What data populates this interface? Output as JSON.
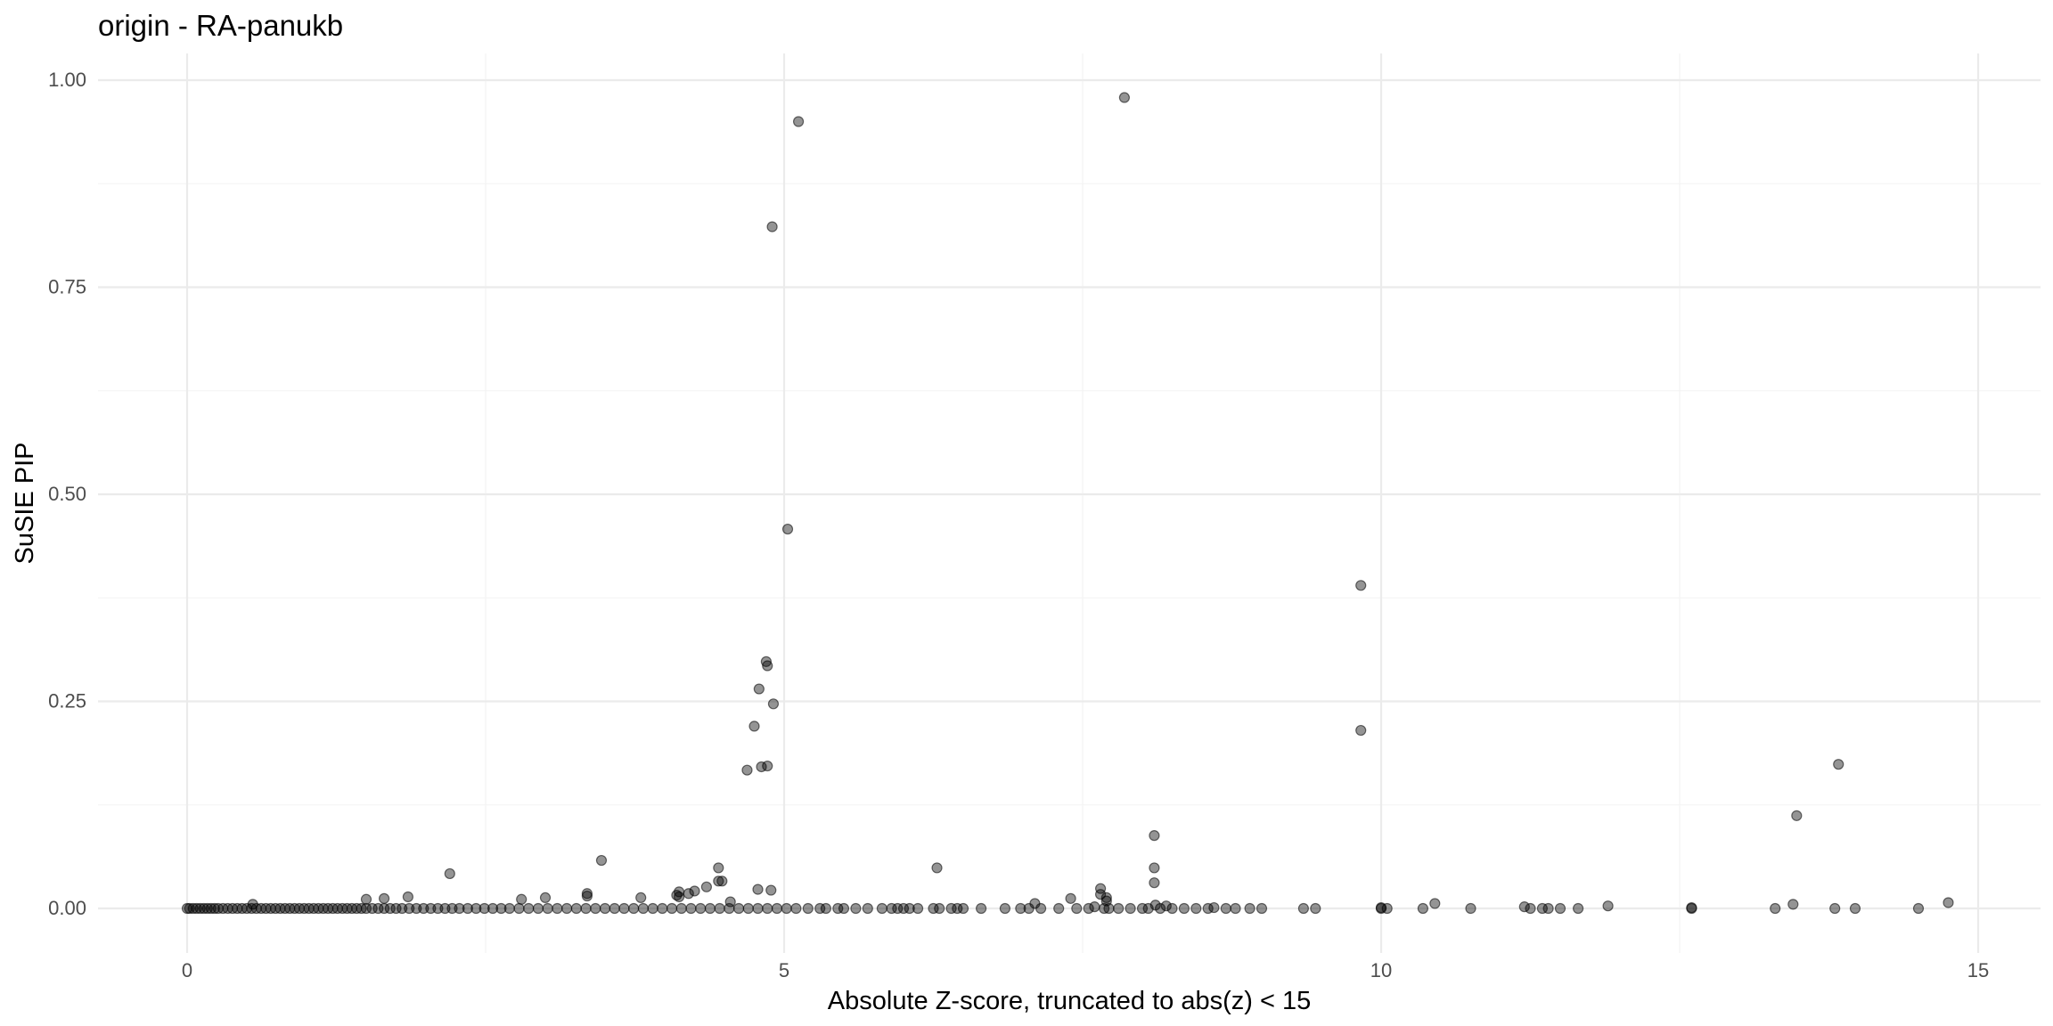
{
  "chart_data": {
    "type": "scatter",
    "title": "origin - RA-panukb",
    "xlabel": "Absolute Z-score, truncated to abs(z) < 15",
    "ylabel": "SuSIE PIP",
    "xlim": [
      -0.75,
      15.5
    ],
    "ylim": [
      -0.05,
      1.03
    ],
    "x_ticks": [
      0,
      5,
      10,
      15
    ],
    "y_ticks": [
      0.0,
      0.25,
      0.5,
      0.75,
      1.0
    ],
    "x_tick_labels": [
      "0",
      "5",
      "10",
      "15"
    ],
    "y_tick_labels": [
      "0.00",
      "0.25",
      "0.50",
      "0.75",
      "1.00"
    ],
    "grid": true,
    "legend": "none",
    "colors": {
      "point": "#000000",
      "grid": "#ebebeb"
    },
    "points": {
      "x": [
        7.85,
        5.12,
        4.9,
        5.03,
        9.83,
        4.85,
        4.86,
        4.79,
        4.91,
        4.75,
        9.83,
        13.83,
        4.86,
        4.81,
        4.69,
        13.48,
        8.1,
        3.47,
        6.28,
        4.45,
        8.1,
        2.2,
        4.45,
        4.89,
        4.78,
        8.1,
        7.65,
        7.65,
        7.7,
        7.7,
        4.48,
        4.12,
        4.12,
        4.25,
        4.35,
        3.35,
        3.35,
        3.8,
        4.2,
        4.1,
        14.75,
        10.45,
        13.45,
        11.9,
        7.4,
        7.1,
        8.6,
        10.0,
        12.6,
        11.2,
        1.5,
        1.65,
        1.85,
        2.8,
        3.0,
        4.55,
        0.55,
        8.11,
        8.2,
        7.6
      ],
      "y": [
        0.979,
        0.95,
        0.823,
        0.458,
        0.39,
        0.298,
        0.293,
        0.265,
        0.247,
        0.22,
        0.215,
        0.174,
        0.172,
        0.171,
        0.167,
        0.112,
        0.088,
        0.058,
        0.049,
        0.049,
        0.049,
        0.042,
        0.033,
        0.022,
        0.023,
        0.031,
        0.024,
        0.017,
        0.013,
        0.009,
        0.033,
        0.02,
        0.014,
        0.021,
        0.026,
        0.018,
        0.015,
        0.013,
        0.018,
        0.016,
        0.007,
        0.006,
        0.005,
        0.003,
        0.012,
        0.006,
        0.001,
        0.001,
        0.001,
        0.002,
        0.011,
        0.012,
        0.014,
        0.011,
        0.013,
        0.008,
        0.005,
        0.004,
        0.003,
        0.002
      ],
      "near_zero_x": [
        0.0,
        0.02,
        0.05,
        0.08,
        0.11,
        0.14,
        0.17,
        0.2,
        0.23,
        0.26,
        0.3,
        0.34,
        0.38,
        0.42,
        0.46,
        0.5,
        0.54,
        0.58,
        0.62,
        0.66,
        0.7,
        0.74,
        0.78,
        0.82,
        0.86,
        0.9,
        0.94,
        0.98,
        1.02,
        1.06,
        1.1,
        1.14,
        1.18,
        1.22,
        1.26,
        1.3,
        1.34,
        1.38,
        1.42,
        1.46,
        1.5,
        1.55,
        1.6,
        1.65,
        1.7,
        1.75,
        1.8,
        1.86,
        1.92,
        1.98,
        2.04,
        2.1,
        2.16,
        2.22,
        2.28,
        2.35,
        2.42,
        2.49,
        2.56,
        2.63,
        2.7,
        2.78,
        2.86,
        2.94,
        3.02,
        3.1,
        3.18,
        3.26,
        3.34,
        3.42,
        3.5,
        3.58,
        3.66,
        3.74,
        3.82,
        3.9,
        3.98,
        4.06,
        4.14,
        4.22,
        4.3,
        4.38,
        4.46,
        4.54,
        4.62,
        4.7,
        4.78,
        4.86,
        4.94,
        5.02,
        5.1,
        5.2,
        5.3,
        5.35,
        5.45,
        5.5,
        5.6,
        5.7,
        5.82,
        5.9,
        5.95,
        6.0,
        6.05,
        6.12,
        6.25,
        6.3,
        6.4,
        6.45,
        6.5,
        6.65,
        6.85,
        6.98,
        7.05,
        7.15,
        7.3,
        7.45,
        7.55,
        7.68,
        7.72,
        7.8,
        7.9,
        8.0,
        8.05,
        8.15,
        8.25,
        8.35,
        8.45,
        8.55,
        8.7,
        8.78,
        8.9,
        9.0,
        9.35,
        9.45,
        10.0,
        10.05,
        10.35,
        10.75,
        11.25,
        11.35,
        11.4,
        11.5,
        11.65,
        12.6,
        13.3,
        13.8,
        13.97,
        14.5
      ]
    }
  }
}
